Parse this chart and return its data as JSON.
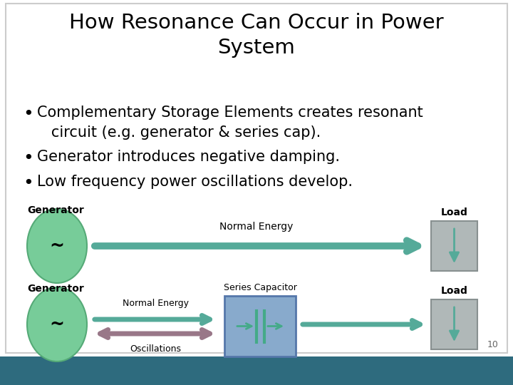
{
  "title": "How Resonance Can Occur in Power\nSystem",
  "bullet1": "Complementary Storage Elements creates resonant\n   circuit (e.g. generator & series cap).",
  "bullet2": "Generator introduces negative damping.",
  "bullet3": "Low frequency power oscillations develop.",
  "bg_color": "#ffffff",
  "teal_bar_color": "#2e6b7e",
  "title_fontsize": 21,
  "bullet_fontsize": 15,
  "generator_color": "#77cc99",
  "generator_border": "#55aa77",
  "load_color": "#b0b8b8",
  "load_border": "#889090",
  "arrow_color": "#55aa99",
  "osc_arrow_color": "#997788",
  "cap_bg": "#88aacc",
  "cap_border": "#5577aa",
  "cap_inner_color": "#44aa88",
  "page_num": "10"
}
